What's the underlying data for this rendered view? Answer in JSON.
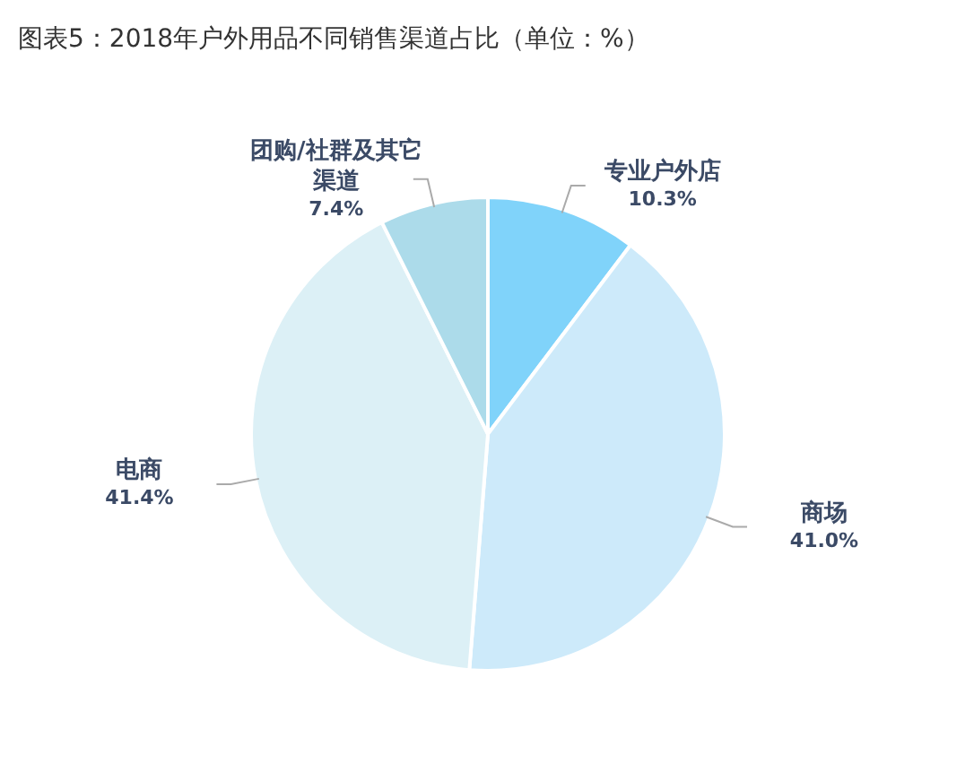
{
  "chart_data": {
    "type": "pie",
    "title": "图表5：2018年户外用品不同销售渠道占比（单位：%）",
    "categories": [
      "专业户外店",
      "商场",
      "电商",
      "团购/社群及其它渠道"
    ],
    "values": [
      10.3,
      41.0,
      41.4,
      7.4
    ],
    "value_labels": [
      "10.3%",
      "41.0%",
      "41.4%",
      "7.4%"
    ],
    "colors": [
      "#80d3fa",
      "#cdeafa",
      "#dcf0f6",
      "#acdbea"
    ],
    "legend": false
  }
}
